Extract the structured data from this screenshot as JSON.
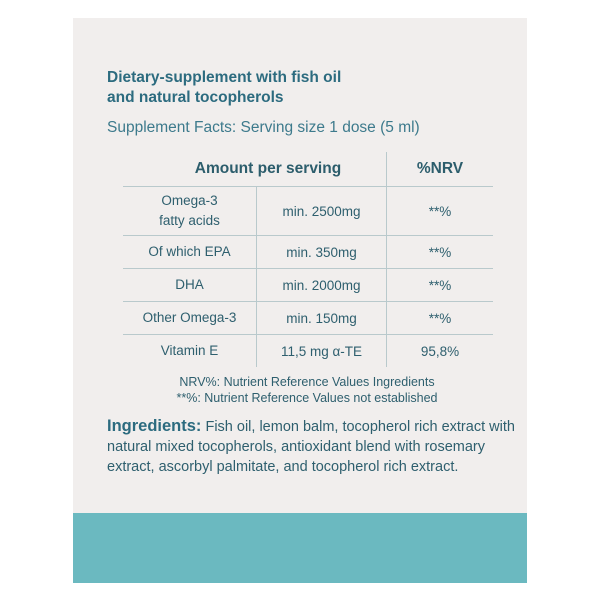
{
  "label": {
    "title_line1": "Dietary-supplement with fish oil",
    "title_line2": "and natural tocopherols",
    "subtitle": "Supplement Facts: Serving size 1 dose (5 ml)",
    "table": {
      "header_amount": "Amount per serving",
      "header_nrv": "%NRV",
      "rows": [
        {
          "name_line1": "Omega-3",
          "name_line2": "fatty acids",
          "amount": "min. 2500mg",
          "nrv": "**%"
        },
        {
          "name": "Of which EPA",
          "amount": "min. 350mg",
          "nrv": "**%"
        },
        {
          "name": "DHA",
          "amount": "min. 2000mg",
          "nrv": "**%"
        },
        {
          "name": "Other Omega-3",
          "amount": "min. 150mg",
          "nrv": "**%"
        },
        {
          "name": "Vitamin E",
          "amount": "11,5 mg α-TE",
          "nrv": "95,8%"
        }
      ]
    },
    "note1": "NRV%: Nutrient Reference Values Ingredients",
    "note2": "**%: Nutrient Reference Values not established",
    "ingredients_label": "Ingredients:",
    "ingredients_text": " Fish oil, lemon balm, tocopherol rich extract with natural mixed tocopherols, antioxidant blend with rosemary extract, ascorbyl palmitate, and tocopherol rich extract."
  },
  "colors": {
    "panel_bg": "#f1eeed",
    "accent_band": "#6bb9c0",
    "title_teal": "#2c6b7f",
    "text_teal": "#2e5f6e"
  }
}
